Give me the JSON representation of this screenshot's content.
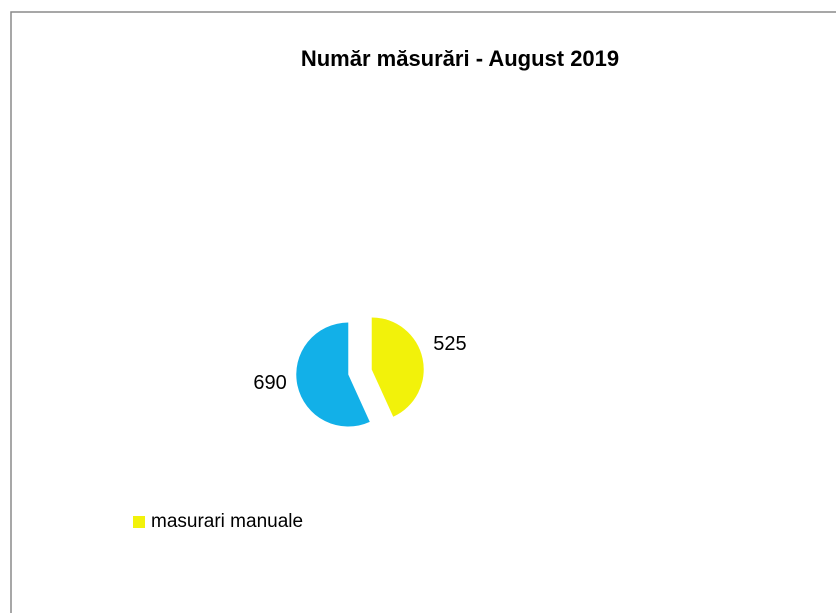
{
  "chart_data": {
    "type": "pie",
    "title": "Număr măsurări - August 2019",
    "categories": [
      "masurari manuale",
      null
    ],
    "values": [
      525,
      690
    ],
    "colors": [
      "#f2f20a",
      "#12b0e8"
    ],
    "legend": "bottom-left"
  }
}
